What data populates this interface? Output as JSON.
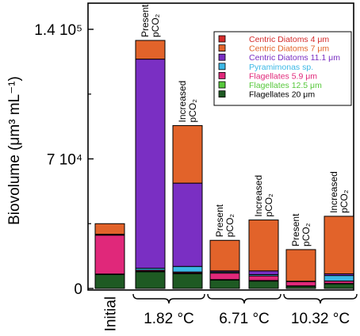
{
  "chart_data": {
    "type": "bar",
    "stacked": true,
    "ylabel": "Biovolume (μm³ mL⁻¹)",
    "ylim": [
      0,
      150000
    ],
    "yticks": [
      {
        "value": 0,
        "label": "0"
      },
      {
        "value": 70000,
        "label": "7 10⁴"
      },
      {
        "value": 140000,
        "label": "1.4 10⁵"
      }
    ],
    "bars": [
      {
        "label": [
          "Initial"
        ],
        "group": "Initial"
      },
      {
        "label": [
          "Present",
          "pCO₂"
        ],
        "group": "1.82 °C"
      },
      {
        "label": [
          "Increased",
          "pCO₂"
        ],
        "group": "1.82 °C"
      },
      {
        "label": [
          "Present",
          "pCO₂"
        ],
        "group": "6.71 °C"
      },
      {
        "label": [
          "Increased",
          "pCO₂"
        ],
        "group": "6.71 °C"
      },
      {
        "label": [
          "Present",
          "pCO₂"
        ],
        "group": "10.32 °C"
      },
      {
        "label": [
          "Increased",
          "pCO₂"
        ],
        "group": "10.32 °C"
      }
    ],
    "groups": [
      "Initial",
      "1.82 °C",
      "6.71 °C",
      "10.32 °C"
    ],
    "series": [
      {
        "name": "Flagellates 20 μm",
        "color": "#1e5a23",
        "values": [
          7500,
          9000,
          8000,
          4500,
          4000,
          1200,
          2500
        ]
      },
      {
        "name": "Flagellates 12.5 μm",
        "color": "#57c83c",
        "values": [
          300,
          300,
          300,
          300,
          300,
          200,
          200
        ]
      },
      {
        "name": "Flagellates 5.9 μm",
        "color": "#e0287a",
        "values": [
          21000,
          600,
          600,
          3500,
          2500,
          2300,
          1300
        ]
      },
      {
        "name": "Pyramimonas sp.",
        "color": "#3cb8e6",
        "values": [
          300,
          1000,
          3000,
          600,
          700,
          100,
          3000
        ]
      },
      {
        "name": "Centric Diatoms 11.1 μm",
        "color": "#7a2fc3",
        "values": [
          200,
          113000,
          45000,
          600,
          2000,
          100,
          900
        ]
      },
      {
        "name": "Centric Diatoms 7 μm",
        "color": "#e2632a",
        "values": [
          5700,
          10100,
          31100,
          16500,
          27500,
          17100,
          31100
        ]
      },
      {
        "name": "Centric Diatoms 4 μm",
        "color": "#d42b2b",
        "values": [
          0,
          0,
          0,
          0,
          0,
          0,
          0
        ]
      }
    ],
    "legend": {
      "placement": "top-right",
      "entries": [
        {
          "name": "Centric Diatoms 4 μm",
          "color": "#d42b2b"
        },
        {
          "name": "Centric Diatoms 7 μm",
          "color": "#e2632a"
        },
        {
          "name": "Centric Diatoms 11.1 μm",
          "color": "#7a2fc3"
        },
        {
          "name": "Pyramimonas sp.",
          "color": "#3cb8e6"
        },
        {
          "name": "Flagellates 5.9 μm",
          "color": "#e0287a"
        },
        {
          "name": "Flagellates 12.5 μm",
          "color": "#57c83c"
        },
        {
          "name": "Flagellates 20 μm",
          "color": "#1e5a23"
        }
      ]
    }
  }
}
